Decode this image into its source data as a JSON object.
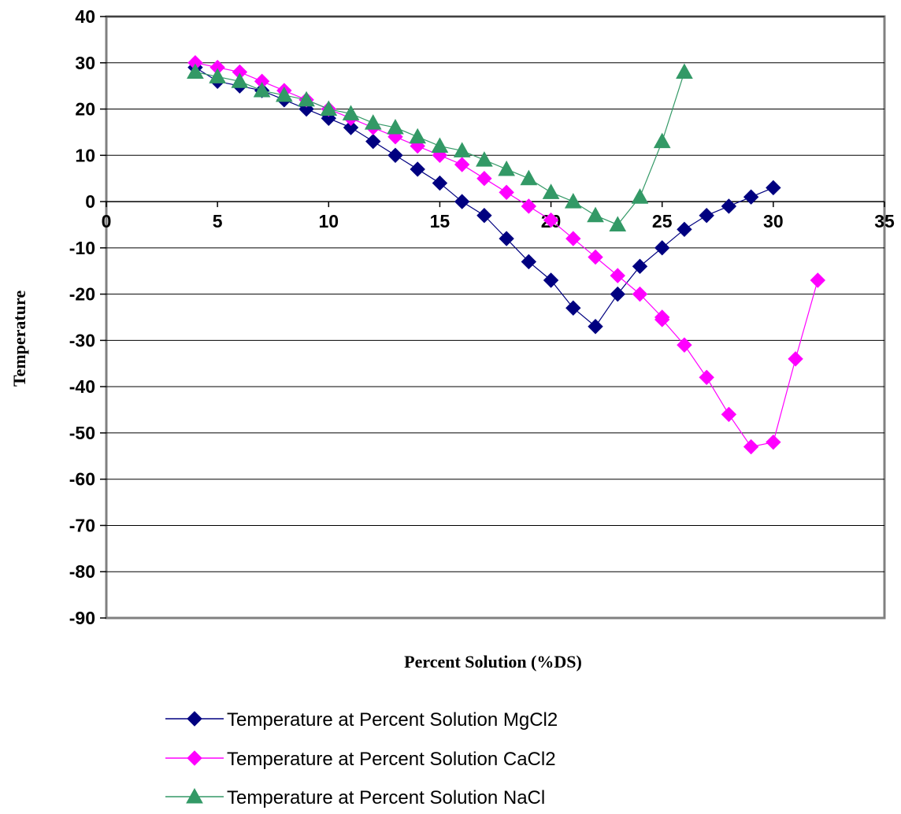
{
  "chart_data": {
    "type": "line",
    "xlabel": "Percent Solution (%DS)",
    "ylabel": "Temperature",
    "xlim": [
      0,
      35
    ],
    "ylim": [
      -90,
      40
    ],
    "x_ticks": [
      0,
      5,
      10,
      15,
      20,
      25,
      30,
      35
    ],
    "y_ticks": [
      40,
      30,
      20,
      10,
      0,
      -10,
      -20,
      -30,
      -40,
      -50,
      -60,
      -70,
      -80,
      -90
    ],
    "grid": "horizontal",
    "legend_position": "bottom",
    "series": [
      {
        "name": "Temperature at Percent Solution MgCl2",
        "color": "#000080",
        "marker": "diamond",
        "x": [
          4,
          5,
          6,
          7,
          8,
          9,
          10,
          11,
          12,
          13,
          14,
          15,
          16,
          17,
          18,
          19,
          20,
          21,
          22,
          23,
          24,
          25,
          26,
          27,
          28,
          29,
          30
        ],
        "y": [
          29,
          26,
          25,
          24,
          22,
          20,
          18,
          16,
          13,
          10,
          7,
          4,
          0,
          -3,
          -8,
          -13,
          -17,
          -23,
          -27,
          -20,
          -14,
          -10,
          -6,
          -3,
          -1,
          1,
          3
        ]
      },
      {
        "name": "Temperature at Percent Solution CaCl2",
        "color": "#ff00ff",
        "marker": "diamond",
        "x": [
          4,
          5,
          6,
          7,
          8,
          9,
          10,
          11,
          12,
          13,
          14,
          15,
          16,
          17,
          18,
          19,
          20,
          21,
          22,
          23,
          24,
          25,
          25,
          26,
          27,
          28,
          29,
          30,
          31,
          32
        ],
        "y": [
          30,
          29,
          28,
          26,
          24,
          22,
          20,
          18,
          16,
          14,
          12,
          10,
          8,
          5,
          2,
          -1,
          -4,
          -8,
          -12,
          -16,
          -20,
          -25,
          -25.5,
          -31,
          -38,
          -46,
          -53,
          -52,
          -34,
          -17
        ]
      },
      {
        "name": "Temperature at Percent Solution NaCl",
        "color": "#339966",
        "marker": "triangle",
        "x": [
          4,
          5,
          6,
          7,
          8,
          9,
          10,
          11,
          12,
          13,
          14,
          15,
          16,
          17,
          18,
          19,
          20,
          21,
          22,
          23,
          24,
          25,
          26
        ],
        "y": [
          28,
          27,
          26,
          24,
          23,
          22,
          20,
          19,
          17,
          16,
          14,
          12,
          11,
          9,
          7,
          5,
          2,
          0,
          -3,
          -5,
          1,
          13,
          28
        ]
      }
    ]
  }
}
